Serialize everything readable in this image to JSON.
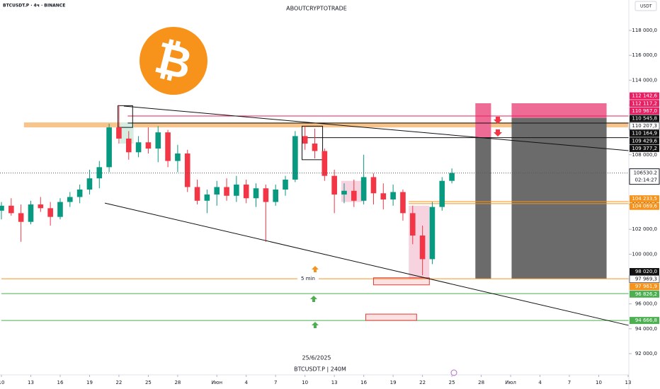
{
  "chart_data": {
    "type": "candlestick",
    "title": "ABOUTCRYPTOTRADE",
    "symbol": "BTCUSDT.P · 4ч · BINANCE",
    "currency": "USDT",
    "date_note": "25/6/2025",
    "footer": "BTCUSDT.P | 240M",
    "annotation": "5 min",
    "logo": "₿",
    "up_color": "#089981",
    "down_color": "#f23645",
    "xlim": [
      0,
      64
    ],
    "xticks": [
      {
        "value": 0,
        "label": "10"
      },
      {
        "value": 3,
        "label": "13"
      },
      {
        "value": 6,
        "label": "16"
      },
      {
        "value": 9,
        "label": "19"
      },
      {
        "value": 12,
        "label": "22"
      },
      {
        "value": 15,
        "label": "25"
      },
      {
        "value": 18,
        "label": "28"
      },
      {
        "value": 22,
        "label": "Июн"
      },
      {
        "value": 25,
        "label": "4"
      },
      {
        "value": 28,
        "label": "7"
      },
      {
        "value": 31,
        "label": "10"
      },
      {
        "value": 34,
        "label": "13"
      },
      {
        "value": 37,
        "label": "16"
      },
      {
        "value": 40,
        "label": "19"
      },
      {
        "value": 43,
        "label": "22"
      },
      {
        "value": 46,
        "label": "25"
      },
      {
        "value": 49,
        "label": "28"
      },
      {
        "value": 52,
        "label": "Июл"
      },
      {
        "value": 55,
        "label": "4"
      },
      {
        "value": 58,
        "label": "7"
      },
      {
        "value": 61,
        "label": "10"
      },
      {
        "value": 64,
        "label": "13"
      }
    ],
    "ylim": [
      90860,
      120450
    ],
    "yticks": [
      {
        "value": 118000,
        "label": "118 000,0"
      },
      {
        "value": 116000,
        "label": "116 000,0"
      },
      {
        "value": 114000,
        "label": "114 000,0"
      },
      {
        "value": 112000,
        "label": "112 000,0"
      },
      {
        "value": 110000,
        "label": "110 000,0"
      },
      {
        "value": 108000,
        "label": "108 000,0"
      },
      {
        "value": 106000,
        "label": "106 000,0"
      },
      {
        "value": 104000,
        "label": "104 000,0"
      },
      {
        "value": 102000,
        "label": "102 000,0"
      },
      {
        "value": 100000,
        "label": "100 000,0"
      },
      {
        "value": 98000,
        "label": "98 000,0"
      },
      {
        "value": 96000,
        "label": "96 000,0"
      },
      {
        "value": 94000,
        "label": "94 000,0"
      },
      {
        "value": 92000,
        "label": "92 000,0"
      }
    ],
    "x": [
      0,
      1,
      2,
      3,
      4,
      5,
      6,
      7,
      8,
      9,
      10,
      11,
      12,
      13,
      14,
      15,
      16,
      17,
      18,
      19,
      20,
      21,
      22,
      23,
      24,
      25,
      26,
      27,
      28,
      29,
      30,
      31,
      32,
      33,
      34,
      35,
      36,
      37,
      38,
      39,
      40,
      41,
      42,
      43,
      44,
      45,
      46
    ],
    "open": [
      103500,
      103900,
      103300,
      102600,
      104000,
      103700,
      103000,
      104200,
      104600,
      105200,
      106100,
      107000,
      110200,
      109300,
      108200,
      109000,
      108500,
      109800,
      107500,
      108100,
      105400,
      104300,
      104800,
      105400,
      104700,
      105600,
      104500,
      105300,
      104200,
      105200,
      106000,
      109500,
      108900,
      108300,
      106300,
      104800,
      105100,
      104300,
      106200,
      104900,
      104400,
      105000,
      103300,
      101500,
      99600,
      103800,
      105900
    ],
    "high": [
      104200,
      104500,
      104000,
      104300,
      104600,
      104200,
      104500,
      105000,
      105600,
      106800,
      107500,
      110500,
      112000,
      109900,
      109500,
      110200,
      110300,
      110000,
      108800,
      108400,
      106000,
      105200,
      105900,
      106100,
      106300,
      106000,
      105700,
      105600,
      105600,
      106300,
      109900,
      110300,
      110100,
      108500,
      106800,
      105700,
      106000,
      108000,
      106500,
      105700,
      105600,
      105200,
      103900,
      102300,
      104200,
      106200,
      106900
    ],
    "low": [
      102800,
      103100,
      101000,
      102400,
      103400,
      102300,
      102800,
      103800,
      104100,
      104800,
      105300,
      106600,
      108900,
      107600,
      107800,
      108100,
      107400,
      107000,
      106600,
      105000,
      104000,
      103300,
      103900,
      104300,
      104200,
      104100,
      103800,
      101000,
      103900,
      104700,
      105800,
      108400,
      107700,
      105900,
      103300,
      104100,
      103800,
      104000,
      104000,
      103600,
      103900,
      102700,
      100800,
      98300,
      99200,
      103500,
      105700
    ],
    "close": [
      103900,
      103300,
      102600,
      104000,
      103700,
      103000,
      104200,
      104600,
      105200,
      106100,
      107000,
      110200,
      109300,
      108200,
      109000,
      108500,
      109800,
      107500,
      108100,
      105400,
      104300,
      104800,
      105400,
      104700,
      105600,
      104500,
      105300,
      104200,
      105200,
      106000,
      109500,
      108900,
      108300,
      106300,
      104800,
      105100,
      104300,
      106200,
      104900,
      104400,
      105000,
      103300,
      101500,
      99600,
      103800,
      105900,
      106530
    ],
    "current_price": 106530.2,
    "countdown": "02:14:27",
    "trendlines": [
      {
        "x": [
          12.5,
          64.06
        ],
        "y": [
          111912,
          108327
        ],
        "color": "#111111"
      },
      {
        "x": [
          10.56,
          64.06
        ],
        "y": [
          104114,
          94270
        ],
        "color": "#111111"
      }
    ],
    "levels": [
      {
        "value": 111117.2,
        "color": "#e91e63",
        "from": 12.9
      },
      {
        "value": 110545.8,
        "color": "#111111",
        "from": 12.9
      },
      {
        "value": 109377.2,
        "color": "#111111",
        "from": 30.7
      },
      {
        "value": 104233.5,
        "color": "#f7931a",
        "from": 41.6
      },
      {
        "value": 104069.6,
        "color": "#f7931a",
        "from": 41.6
      },
      {
        "value": 98020.0,
        "color": "#f7931a",
        "from": 0
      },
      {
        "value": 96826.2,
        "color": "#4caf50",
        "from": 0
      },
      {
        "value": 94666.8,
        "color": "#4caf50",
        "from": 0
      }
    ],
    "zones": [
      {
        "x": [
          2.3,
          64
        ],
        "y": [
          110200,
          110600
        ],
        "color": "#f7c58c"
      },
      {
        "x": [
          48.4,
          50
        ],
        "y": [
          109377.2,
          112142.6
        ],
        "color": "#ee6b95"
      },
      {
        "x": [
          48.4,
          50
        ],
        "y": [
          98020.0,
          109377.2
        ],
        "color": "#6b6b6b"
      },
      {
        "x": [
          52.1,
          61.8
        ],
        "y": [
          110967.0,
          112142.6
        ],
        "color": "#ee6b95"
      },
      {
        "x": [
          52.1,
          61.8
        ],
        "y": [
          98020.0,
          110967.0
        ],
        "color": "#6b6b6b"
      },
      {
        "x": [
          41.6,
          43.7
        ],
        "y": [
          98020.0,
          103900
        ],
        "color": "#f6d3de"
      },
      {
        "x": [
          34.7,
          37
        ],
        "y": [
          104200,
          105900
        ],
        "color": "#f6d3de"
      },
      {
        "x": [
          12.1,
          13.5
        ],
        "y": [
          108900,
          110600
        ],
        "color": "#d6eee2"
      }
    ],
    "boxes": [
      {
        "x": [
          38,
          43.7
        ],
        "y": [
          97530,
          98100
        ],
        "color": "#e53935"
      },
      {
        "x": [
          37.2,
          42.4
        ],
        "y": [
          94670,
          95180
        ],
        "color": "#e53935"
      },
      {
        "x": [
          11.9,
          13.4
        ],
        "y": [
          110200,
          111950
        ],
        "color": "#111111"
      },
      {
        "x": [
          30.7,
          32.8
        ],
        "y": [
          107600,
          110300
        ],
        "color": "#111111"
      }
    ],
    "price_labels": [
      {
        "value": 112142.6,
        "label": "112 142,6",
        "color": "#e91e63"
      },
      {
        "value": 112117.2,
        "label": "112 117,2",
        "color": "#e91e63"
      },
      {
        "value": 110967.0,
        "label": "110 967,0",
        "color": "#e91e63"
      },
      {
        "value": 110545.8,
        "label": "110 545,8",
        "color": "#111111"
      },
      {
        "value": 110207.3,
        "label": "110 207,3",
        "color": "#ffffff"
      },
      {
        "value": 110164.9,
        "label": "110 164,9",
        "color": "#111111"
      },
      {
        "value": 109429.6,
        "label": "109 429,6",
        "color": "#111111"
      },
      {
        "value": 109377.2,
        "label": "109 377,2",
        "color": "#111111"
      },
      {
        "value": 104233.5,
        "label": "104 233,5",
        "color": "#f7931a"
      },
      {
        "value": 104069.6,
        "label": "104 069,6",
        "color": "#f7931a"
      },
      {
        "value": 98020.0,
        "label": "98 020,0",
        "color": "#111111"
      },
      {
        "value": 97969.3,
        "label": "97 969,3",
        "color": "#ffffff"
      },
      {
        "value": 97961.9,
        "label": "97 961,9",
        "color": "#f7931a"
      },
      {
        "value": 96826.2,
        "label": "96 826,2",
        "color": "#4caf50"
      },
      {
        "value": 94666.8,
        "label": "94 666,8",
        "color": "#4caf50"
      }
    ]
  }
}
